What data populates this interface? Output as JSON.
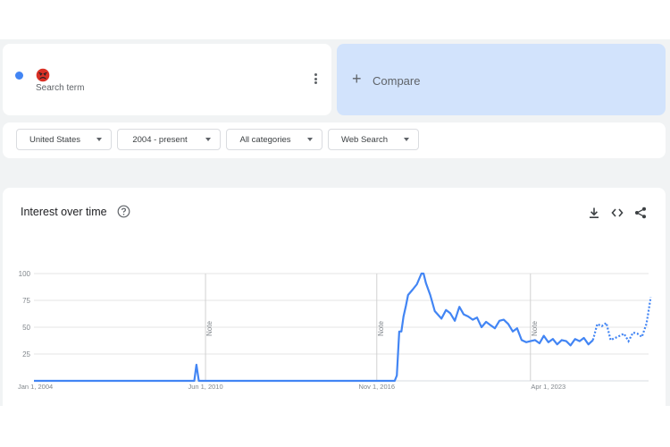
{
  "search_term": {
    "emoji": "😡",
    "subtitle": "Search term",
    "dot_color": "#4285f4",
    "menu_icon": "more-vert-icon"
  },
  "compare": {
    "label": "Compare",
    "icon": "plus-icon"
  },
  "filters": [
    {
      "label": "United States"
    },
    {
      "label": "2004 - present"
    },
    {
      "label": "All categories"
    },
    {
      "label": "Web Search"
    }
  ],
  "chart_panel": {
    "title": "Interest over time",
    "icons": [
      "help-icon",
      "download-icon",
      "embed-icon",
      "share-icon"
    ]
  },
  "chart_data": {
    "type": "line",
    "title": "",
    "xlabel": "",
    "ylabel": "",
    "ylim": [
      0,
      100
    ],
    "yticks": [
      25,
      50,
      75,
      100
    ],
    "xticks": [
      "Jan 1, 2004",
      "Jun 1, 2010",
      "Nov 1, 2016",
      "Apr 1, 2023"
    ],
    "notes": [
      {
        "x": 2010.42,
        "label": "Note"
      },
      {
        "x": 2016.83,
        "label": "Note"
      },
      {
        "x": 2022.58,
        "label": "Note"
      }
    ],
    "series": [
      {
        "color": "#4285f4",
        "partial_from_x": 2025.0,
        "points": [
          [
            2004.0,
            0
          ],
          [
            2010.0,
            0
          ],
          [
            2010.08,
            15
          ],
          [
            2010.17,
            0
          ],
          [
            2017.5,
            0
          ],
          [
            2017.58,
            5
          ],
          [
            2017.67,
            46
          ],
          [
            2017.75,
            46
          ],
          [
            2017.83,
            60
          ],
          [
            2017.92,
            70
          ],
          [
            2018.0,
            80
          ],
          [
            2018.17,
            85
          ],
          [
            2018.33,
            90
          ],
          [
            2018.5,
            100
          ],
          [
            2018.58,
            100
          ],
          [
            2018.67,
            91
          ],
          [
            2018.83,
            80
          ],
          [
            2019.0,
            65
          ],
          [
            2019.25,
            58
          ],
          [
            2019.42,
            66
          ],
          [
            2019.58,
            63
          ],
          [
            2019.75,
            56
          ],
          [
            2019.92,
            69
          ],
          [
            2020.08,
            62
          ],
          [
            2020.25,
            60
          ],
          [
            2020.42,
            57
          ],
          [
            2020.58,
            59
          ],
          [
            2020.75,
            50
          ],
          [
            2020.92,
            55
          ],
          [
            2021.08,
            52
          ],
          [
            2021.25,
            49
          ],
          [
            2021.42,
            56
          ],
          [
            2021.58,
            57
          ],
          [
            2021.75,
            53
          ],
          [
            2021.92,
            46
          ],
          [
            2022.08,
            49
          ],
          [
            2022.25,
            38
          ],
          [
            2022.42,
            36
          ],
          [
            2022.58,
            37
          ],
          [
            2022.75,
            38
          ],
          [
            2022.92,
            35
          ],
          [
            2023.08,
            42
          ],
          [
            2023.25,
            36
          ],
          [
            2023.42,
            39
          ],
          [
            2023.58,
            34
          ],
          [
            2023.75,
            38
          ],
          [
            2023.92,
            37
          ],
          [
            2024.08,
            33
          ],
          [
            2024.25,
            39
          ],
          [
            2024.42,
            37
          ],
          [
            2024.58,
            40
          ],
          [
            2024.75,
            34
          ],
          [
            2024.92,
            38
          ],
          [
            2025.08,
            53
          ],
          [
            2025.25,
            51
          ],
          [
            2025.42,
            54
          ],
          [
            2025.58,
            38
          ],
          [
            2025.75,
            40
          ],
          [
            2025.92,
            42
          ],
          [
            2026.08,
            44
          ],
          [
            2026.25,
            37
          ],
          [
            2026.42,
            45
          ],
          [
            2026.58,
            44
          ],
          [
            2026.75,
            41
          ],
          [
            2026.92,
            53
          ],
          [
            2027.0,
            65
          ],
          [
            2027.08,
            78
          ]
        ]
      }
    ],
    "grid": true,
    "legend": "none"
  }
}
